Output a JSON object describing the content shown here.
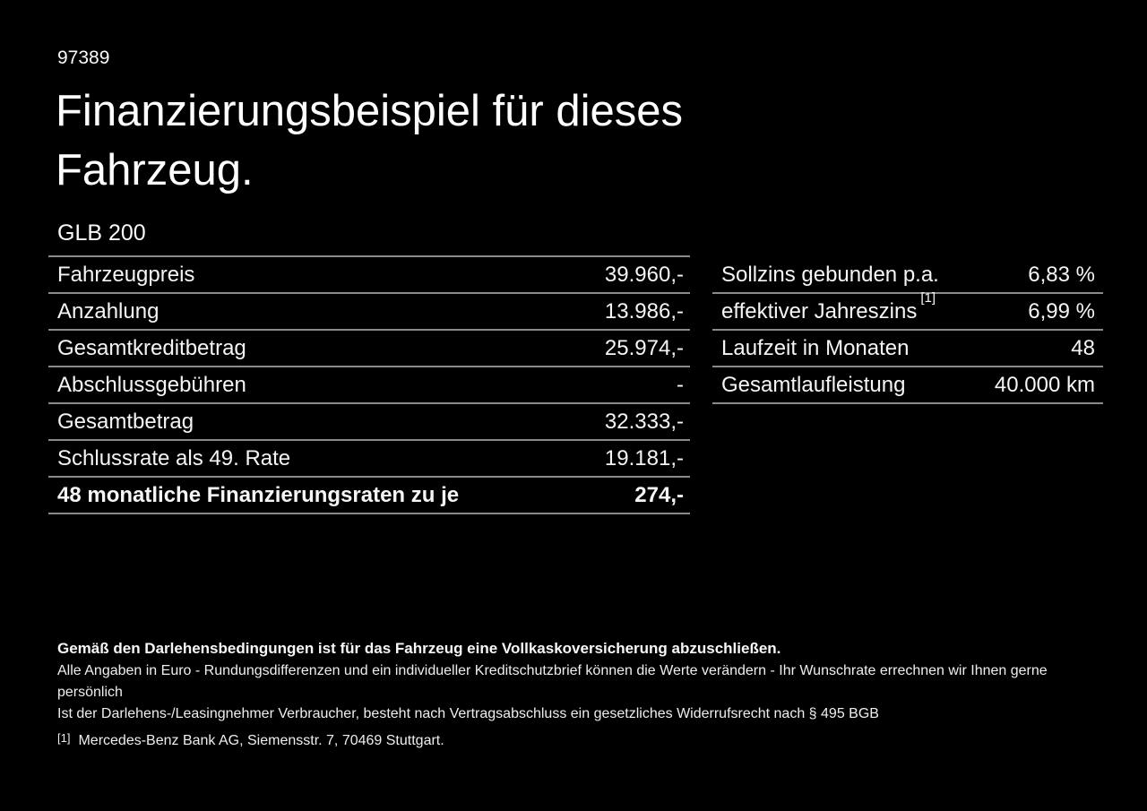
{
  "page": {
    "background": "#000000",
    "text_color": "#f5f5f5",
    "separator_color": "#8a8a8a"
  },
  "header": {
    "offer_id": "97389",
    "title_line1": "Finanzierungsbeispiel für dieses",
    "title_line2": "Fahrzeug.",
    "model": "GLB 200"
  },
  "finance_table": {
    "rows": [
      {
        "label": "Fahrzeugpreis",
        "value": "39.960,-"
      },
      {
        "label": "Anzahlung",
        "value": "13.986,-"
      },
      {
        "label": "Gesamtkreditbetrag",
        "value": "25.974,-"
      },
      {
        "label": "Abschlussgebühren",
        "value": "-"
      },
      {
        "label": "Gesamtbetrag",
        "value": "32.333,-"
      },
      {
        "label": "Schlussrate als 49. Rate",
        "value": "19.181,-"
      },
      {
        "label": "48 monatliche Finanzierungsraten zu je",
        "value": "274,-"
      }
    ]
  },
  "conditions_table": {
    "rows": [
      {
        "label": "Sollzins gebunden p.a.",
        "sup": "",
        "value": "6,83 %"
      },
      {
        "label": "effektiver Jahreszins",
        "sup": "[1]",
        "value": "6,99 %"
      },
      {
        "label": "Laufzeit in Monaten",
        "sup": "",
        "value": "48"
      },
      {
        "label": "Gesamtlaufleistung",
        "sup": "",
        "value": "40.000 km"
      }
    ]
  },
  "footer": {
    "insurance_note": "Gemäß den Darlehensbedingungen ist für das Fahrzeug eine Vollkaskoversicherung abzuschließen.",
    "disclaimer_line1": "Alle Angaben in Euro - Rundungsdifferenzen und ein individueller Kreditschutzbrief können die Werte verändern - Ihr Wunschrate errechnen wir Ihnen gerne persönlich",
    "disclaimer_line2": "Ist der Darlehens-/Leasingnehmer Verbraucher, besteht nach Vertragsabschluss ein gesetzliches Widerrufsrecht nach § 495 BGB",
    "footnote_marker": "[1]",
    "footnote_text": "Mercedes-Benz Bank AG, Siemensstr. 7, 70469 Stuttgart."
  }
}
